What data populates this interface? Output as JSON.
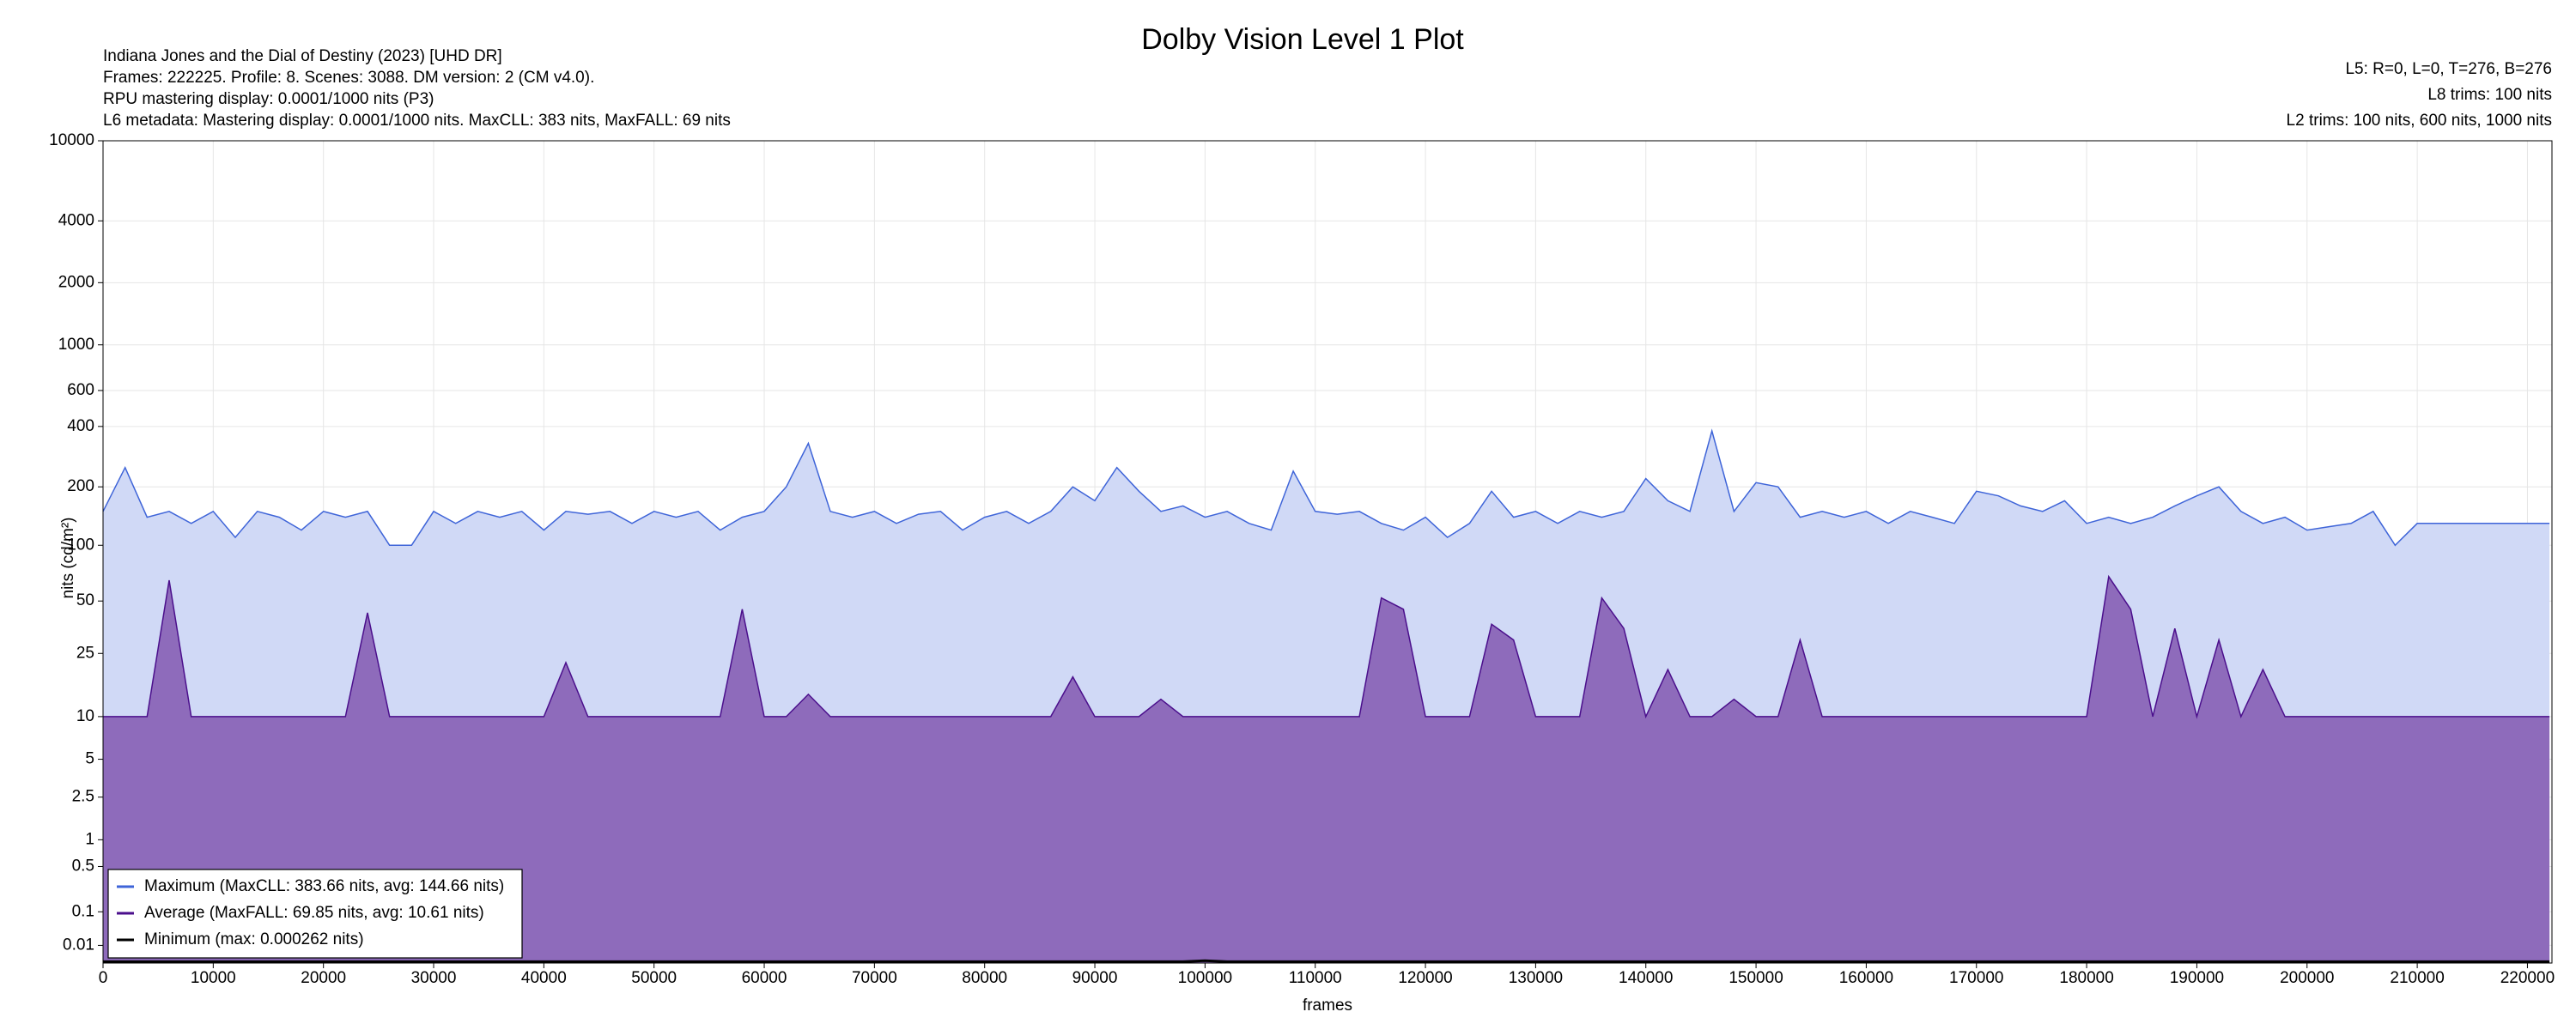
{
  "chart_data": {
    "type": "area",
    "title": "Dolby Vision Level 1 Plot",
    "info": [
      "Indiana Jones and the Dial of Destiny (2023) [UHD DR]",
      "Frames: 222225. Profile: 8. Scenes: 3088. DM version: 2 (CM v4.0).",
      "RPU mastering display: 0.0001/1000 nits  (P3)",
      "L6 metadata: Mastering display: 0.0001/1000 nits. MaxCLL: 383 nits, MaxFALL: 69 nits"
    ],
    "info_right": [
      "L5: R=0, L=0, T=276, B=276",
      "L8 trims: 100 nits",
      "L2 trims: 100 nits, 600 nits, 1000 nits"
    ],
    "xlabel": "frames",
    "ylabel": "nits (cd/m²)",
    "yscale": "pq",
    "grid": true,
    "legend": "lower left",
    "xlim": [
      0,
      222225
    ],
    "xticks": [
      0,
      10000,
      20000,
      30000,
      40000,
      50000,
      60000,
      70000,
      80000,
      90000,
      100000,
      110000,
      120000,
      130000,
      140000,
      150000,
      160000,
      170000,
      180000,
      190000,
      200000,
      210000,
      220000
    ],
    "ylim": [
      0,
      10000
    ],
    "yticks": [
      0.01,
      0.1,
      0.5,
      1,
      2.5,
      5,
      10,
      25,
      50,
      100,
      200,
      400,
      600,
      1000,
      2000,
      4000,
      10000
    ],
    "x": [
      0,
      2000,
      4000,
      6000,
      8000,
      10000,
      12000,
      14000,
      16000,
      18000,
      20000,
      22000,
      24000,
      26000,
      28000,
      30000,
      32000,
      34000,
      36000,
      38000,
      40000,
      42000,
      44000,
      46000,
      48000,
      50000,
      52000,
      54000,
      56000,
      58000,
      60000,
      62000,
      64000,
      66000,
      68000,
      70000,
      72000,
      74000,
      76000,
      78000,
      80000,
      82000,
      84000,
      86000,
      88000,
      90000,
      92000,
      94000,
      96000,
      98000,
      100000,
      102000,
      104000,
      106000,
      108000,
      110000,
      112000,
      114000,
      116000,
      118000,
      120000,
      122000,
      124000,
      126000,
      128000,
      130000,
      132000,
      134000,
      136000,
      138000,
      140000,
      142000,
      144000,
      146000,
      148000,
      150000,
      152000,
      154000,
      156000,
      158000,
      160000,
      162000,
      164000,
      166000,
      168000,
      170000,
      172000,
      174000,
      176000,
      178000,
      180000,
      182000,
      184000,
      186000,
      188000,
      190000,
      192000,
      194000,
      196000,
      198000,
      200000,
      202000,
      204000,
      206000,
      208000,
      210000,
      212000,
      214000,
      216000,
      218000,
      220000,
      222000
    ],
    "series": [
      {
        "name": "Maximum (MaxCLL: 383.66 nits, avg: 144.66 nits)",
        "color": "#3e64d8",
        "fill": "#d0d9f6",
        "values": [
          150,
          250,
          140,
          150,
          130,
          150,
          110,
          150,
          140,
          120,
          150,
          140,
          150,
          100,
          100,
          150,
          130,
          150,
          140,
          150,
          120,
          150,
          145,
          150,
          130,
          150,
          140,
          150,
          120,
          140,
          150,
          200,
          330,
          150,
          140,
          150,
          130,
          145,
          150,
          120,
          140,
          150,
          130,
          150,
          200,
          170,
          250,
          190,
          150,
          160,
          140,
          150,
          130,
          120,
          240,
          150,
          145,
          150,
          130,
          120,
          140,
          110,
          130,
          190,
          140,
          150,
          130,
          150,
          140,
          150,
          220,
          170,
          150,
          380,
          150,
          210,
          200,
          140,
          150,
          140,
          150,
          130,
          150,
          140,
          130,
          190,
          180,
          160,
          150,
          170,
          130,
          140,
          130,
          140,
          160,
          180,
          200,
          150,
          130,
          140,
          120,
          125,
          130,
          150,
          100,
          130,
          130,
          130,
          130,
          130,
          130,
          130
        ]
      },
      {
        "name": "Average (MaxFALL: 69.85 nits, avg: 10.61 nits)",
        "color": "#4b0f8c",
        "fill": "#8e6bbb",
        "values": [
          10,
          10,
          10,
          65,
          10,
          10,
          10,
          10,
          10,
          10,
          10,
          10,
          43,
          10,
          10,
          10,
          10,
          10,
          10,
          10,
          10,
          22,
          10,
          10,
          10,
          10,
          10,
          10,
          10,
          45,
          10,
          10,
          14,
          10,
          10,
          10,
          10,
          10,
          10,
          10,
          10,
          10,
          10,
          10,
          18,
          10,
          10,
          10,
          13,
          10,
          10,
          10,
          10,
          10,
          10,
          10,
          10,
          10,
          52,
          45,
          10,
          10,
          10,
          37,
          30,
          10,
          10,
          10,
          52,
          35,
          10,
          20,
          10,
          10,
          13,
          10,
          10,
          30,
          10,
          10,
          10,
          10,
          10,
          10,
          10,
          10,
          10,
          10,
          10,
          10,
          10,
          68,
          45,
          10,
          35,
          10,
          30,
          10,
          20,
          10,
          10,
          10,
          10,
          10,
          10,
          10,
          10,
          10,
          10,
          10,
          10,
          10
        ]
      },
      {
        "name": "Minimum (max: 0.000262 nits)",
        "color": "#000000",
        "values": [
          0.0001,
          0.0001,
          0.0001,
          0.0001,
          0.0001,
          0.0001,
          0.0001,
          0.0001,
          0.0001,
          0.0001,
          0.0001,
          0.0001,
          0.0001,
          0.0001,
          0.0001,
          0.0001,
          0.0001,
          0.0001,
          0.0001,
          0.0001,
          0.0001,
          0.0001,
          0.0001,
          0.0001,
          0.0001,
          0.0001,
          0.0001,
          0.0001,
          0.0001,
          0.0001,
          0.0001,
          0.0001,
          0.0001,
          0.0001,
          0.0001,
          0.0001,
          0.0001,
          0.0001,
          0.0001,
          0.0001,
          0.0001,
          0.0001,
          0.0001,
          0.0001,
          0.0001,
          0.0001,
          0.0001,
          0.0001,
          0.0001,
          0.0001,
          0.000262,
          0.0001,
          0.0001,
          0.0001,
          0.0001,
          0.0001,
          0.0001,
          0.0001,
          0.0001,
          0.0001,
          0.0001,
          0.0001,
          0.0001,
          0.0001,
          0.0001,
          0.0001,
          0.0001,
          0.0001,
          0.0001,
          0.0001,
          0.0001,
          0.0001,
          0.0001,
          0.0001,
          0.0001,
          0.0001,
          0.0001,
          0.0001,
          0.0001,
          0.0001,
          0.0001,
          0.0001,
          0.0001,
          0.0001,
          0.0001,
          0.0001,
          0.0001,
          0.0001,
          0.0001,
          0.0001,
          0.0001,
          0.0001,
          0.0001,
          0.0001,
          0.0001,
          0.0001,
          0.0001,
          0.0001,
          0.0001,
          0.0001,
          0.0001,
          0.0001,
          0.0001,
          0.0001,
          0.0001,
          0.0001,
          0.0001,
          0.0001,
          0.0001,
          0.0001,
          0.0001,
          0.0001
        ]
      }
    ]
  }
}
